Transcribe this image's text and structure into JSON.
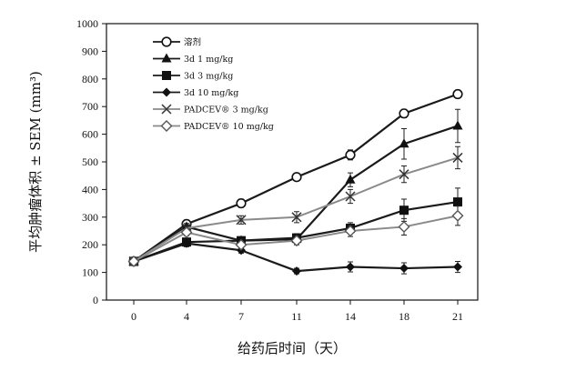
{
  "chart_data": {
    "type": "line",
    "title": "",
    "xlabel": "给药后时间（天）",
    "ylabel": "平均肿瘤体积 ± SEM (mm³)",
    "x": [
      0,
      4,
      7,
      11,
      14,
      18,
      21
    ],
    "x_ticks": [
      "0",
      "4",
      "7",
      "11",
      "14",
      "18",
      "21"
    ],
    "ylim": [
      0,
      1000
    ],
    "y_ticks": [
      "0",
      "100",
      "200",
      "300",
      "400",
      "500",
      "600",
      "700",
      "800",
      "900",
      "1000"
    ],
    "grid": false,
    "legend_position": "top-left",
    "series": [
      {
        "name": "溶剂",
        "marker": "open-circle",
        "line_color": "#1a1a1a",
        "values": [
          140,
          275,
          350,
          445,
          525,
          675,
          745
        ],
        "errors": [
          8,
          12,
          15,
          12,
          18,
          15,
          10
        ]
      },
      {
        "name": "3d   1 mg/kg",
        "marker": "filled-triangle",
        "line_color": "#1a1a1a",
        "values": [
          140,
          265,
          215,
          220,
          435,
          565,
          630
        ],
        "errors": [
          8,
          12,
          12,
          15,
          25,
          55,
          60
        ]
      },
      {
        "name": "3d   3 mg/kg",
        "marker": "filled-square",
        "line_color": "#1a1a1a",
        "values": [
          140,
          210,
          215,
          225,
          260,
          325,
          355
        ],
        "errors": [
          8,
          12,
          12,
          15,
          20,
          40,
          50
        ]
      },
      {
        "name": "3d   10 mg/kg",
        "marker": "filled-diamond",
        "line_color": "#1a1a1a",
        "values": [
          140,
          205,
          180,
          105,
          120,
          115,
          120
        ],
        "errors": [
          8,
          12,
          10,
          10,
          18,
          20,
          20
        ]
      },
      {
        "name": "PADCEV® 3 mg/kg",
        "marker": "cross",
        "line_color": "#8a8a8a",
        "values": [
          140,
          260,
          290,
          300,
          375,
          455,
          515
        ],
        "errors": [
          8,
          12,
          15,
          20,
          25,
          30,
          40
        ]
      },
      {
        "name": "PADCEV® 10 mg/kg",
        "marker": "open-diamond",
        "line_color": "#8a8a8a",
        "values": [
          140,
          245,
          200,
          215,
          250,
          265,
          305
        ],
        "errors": [
          8,
          12,
          12,
          15,
          20,
          30,
          35
        ]
      }
    ]
  }
}
